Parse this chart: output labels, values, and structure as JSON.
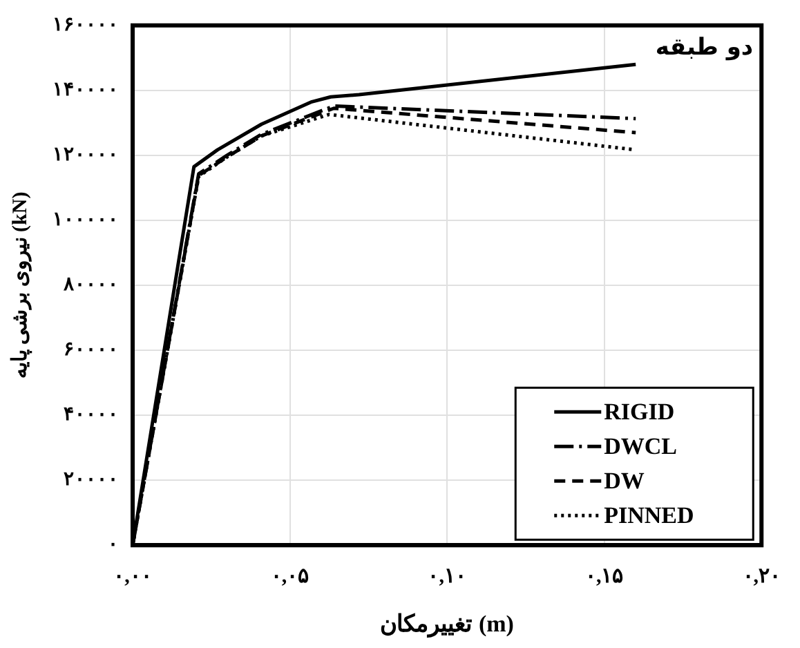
{
  "chart_data": {
    "type": "line",
    "xlabel": "تغییرمکان (m)",
    "ylabel": "نیروی برشی پایه (kN)",
    "annotations": [
      "دو طبقه"
    ],
    "xlim": [
      0,
      0.2
    ],
    "xticks": [
      {
        "value": 0,
        "label": "۰,۰۰"
      },
      {
        "value": 0.05,
        "label": "۰,۰۵"
      },
      {
        "value": 0.1,
        "label": "۰,۱۰"
      },
      {
        "value": 0.15,
        "label": "۰,۱۵"
      },
      {
        "value": 0.2,
        "label": "۰,۲۰"
      }
    ],
    "ylim": [
      0,
      160000
    ],
    "yticks": [
      {
        "value": 0,
        "label": "۰"
      },
      {
        "value": 20000,
        "label": "۲۰۰۰۰"
      },
      {
        "value": 40000,
        "label": "۴۰۰۰۰"
      },
      {
        "value": 60000,
        "label": "۶۰۰۰۰"
      },
      {
        "value": 80000,
        "label": "۸۰۰۰۰"
      },
      {
        "value": 100000,
        "label": "۱۰۰۰۰۰"
      },
      {
        "value": 120000,
        "label": "۱۲۰۰۰۰"
      },
      {
        "value": 140000,
        "label": "۱۴۰۰۰۰"
      },
      {
        "value": 160000,
        "label": "۱۶۰۰۰۰"
      }
    ],
    "grid": true,
    "legend": "bottom right",
    "marker": "none",
    "series": [
      {
        "name": "RIGID",
        "color": "#000000",
        "line_style": "solid",
        "x": [
          0,
          0.0195,
          0.027,
          0.041,
          0.057,
          0.063,
          0.072,
          0.16
        ],
        "values": [
          0,
          116500,
          121700,
          129600,
          136500,
          138000,
          138700,
          148000
        ]
      },
      {
        "name": "DWCL",
        "color": "#000000",
        "line_style": "dashed",
        "x": [
          0,
          0.021,
          0.03,
          0.041,
          0.064,
          0.16
        ],
        "values": [
          0,
          114300,
          120000,
          126500,
          135200,
          131300
        ]
      },
      {
        "name": "DW",
        "color": "#000000",
        "line_style": "dashed",
        "x": [
          0,
          0.021,
          0.03,
          0.041,
          0.064,
          0.16
        ],
        "values": [
          0,
          113800,
          119500,
          126000,
          134500,
          127000
        ]
      },
      {
        "name": "PINNED",
        "color": "#000000",
        "line_style": "dotted",
        "x": [
          0,
          0.021,
          0.03,
          0.041,
          0.0625,
          0.16
        ],
        "values": [
          0,
          113500,
          119500,
          126000,
          132600,
          121700
        ]
      }
    ]
  }
}
